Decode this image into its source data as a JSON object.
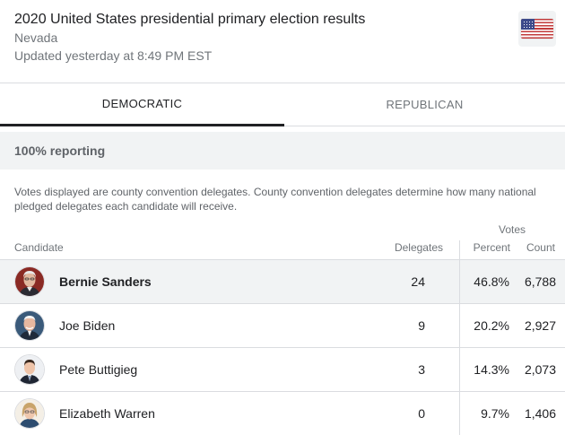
{
  "header": {
    "title": "2020 United States presidential primary election results",
    "state": "Nevada",
    "updated": "Updated yesterday at 8:49 PM EST",
    "flag_icon": "us-flag-icon"
  },
  "tabs": [
    {
      "label": "DEMOCRATIC",
      "active": true
    },
    {
      "label": "REPUBLICAN",
      "active": false
    }
  ],
  "reporting": "100% reporting",
  "note": "Votes displayed are county convention delegates. County convention delegates determine how many national pledged delegates each candidate will receive.",
  "table": {
    "votes_group_label": "Votes",
    "columns": {
      "candidate": "Candidate",
      "delegates": "Delegates",
      "percent": "Percent",
      "count": "Count"
    },
    "rows": [
      {
        "name": "Bernie Sanders",
        "delegates": "24",
        "percent": "46.8%",
        "count": "6,788",
        "leading": true
      },
      {
        "name": "Joe Biden",
        "delegates": "9",
        "percent": "20.2%",
        "count": "2,927",
        "leading": false
      },
      {
        "name": "Pete Buttigieg",
        "delegates": "3",
        "percent": "14.3%",
        "count": "2,073",
        "leading": false
      },
      {
        "name": "Elizabeth Warren",
        "delegates": "0",
        "percent": "9.7%",
        "count": "1,406",
        "leading": false
      }
    ]
  },
  "colors": {
    "highlight_row": "#f1f3f4",
    "active_tab_underline": "#202124",
    "divider": "#dadce0",
    "secondary_text": "#70757a"
  }
}
